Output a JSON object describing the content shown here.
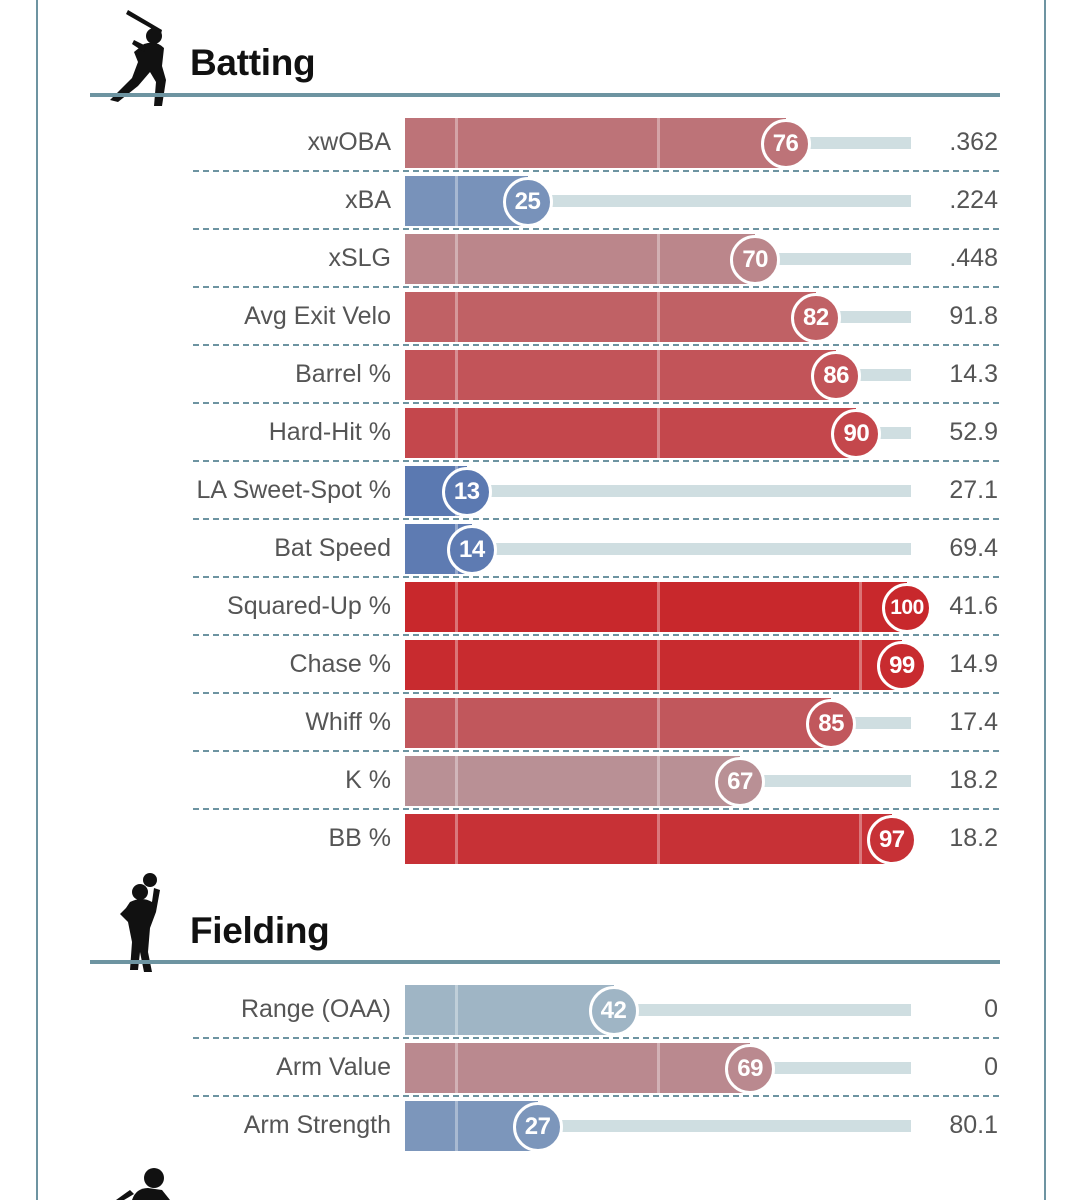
{
  "sections": [
    {
      "title": "Batting",
      "icon": "batter-silhouette-icon",
      "metrics": [
        {
          "label": "xwOBA",
          "percentile": 76,
          "value": ".362"
        },
        {
          "label": "xBA",
          "percentile": 25,
          "value": ".224"
        },
        {
          "label": "xSLG",
          "percentile": 70,
          "value": ".448"
        },
        {
          "label": "Avg Exit Velo",
          "percentile": 82,
          "value": "91.8"
        },
        {
          "label": "Barrel %",
          "percentile": 86,
          "value": "14.3"
        },
        {
          "label": "Hard-Hit %",
          "percentile": 90,
          "value": "52.9"
        },
        {
          "label": "LA Sweet-Spot %",
          "percentile": 13,
          "value": "27.1"
        },
        {
          "label": "Bat Speed",
          "percentile": 14,
          "value": "69.4"
        },
        {
          "label": "Squared-Up %",
          "percentile": 100,
          "value": "41.6"
        },
        {
          "label": "Chase %",
          "percentile": 99,
          "value": "14.9"
        },
        {
          "label": "Whiff %",
          "percentile": 85,
          "value": "17.4"
        },
        {
          "label": "K %",
          "percentile": 67,
          "value": "18.2"
        },
        {
          "label": "BB %",
          "percentile": 97,
          "value": "18.2"
        }
      ]
    },
    {
      "title": "Fielding",
      "icon": "fielder-silhouette-icon",
      "metrics": [
        {
          "label": "Range (OAA)",
          "percentile": 42,
          "value": "0"
        },
        {
          "label": "Arm Value",
          "percentile": 69,
          "value": "0"
        },
        {
          "label": "Arm Strength",
          "percentile": 27,
          "value": "80.1"
        }
      ]
    }
  ],
  "chart_data": {
    "type": "bar",
    "orientation": "horizontal",
    "xlim": [
      0,
      100
    ],
    "series": [
      {
        "name": "Batting",
        "categories": [
          "xwOBA",
          "xBA",
          "xSLG",
          "Avg Exit Velo",
          "Barrel %",
          "Hard-Hit %",
          "LA Sweet-Spot %",
          "Bat Speed",
          "Squared-Up %",
          "Chase %",
          "Whiff %",
          "K %",
          "BB %"
        ],
        "values": [
          76,
          25,
          70,
          82,
          86,
          90,
          13,
          14,
          100,
          99,
          85,
          67,
          97
        ]
      },
      {
        "name": "Fielding",
        "categories": [
          "Range (OAA)",
          "Arm Value",
          "Arm Strength"
        ],
        "values": [
          42,
          69,
          27
        ]
      }
    ]
  },
  "colors": {
    "frame": "#6d94a1",
    "track": "#cfdee1",
    "low": "#3d5ea8",
    "mid": "#b2c5cb",
    "high": "#c8282c"
  }
}
